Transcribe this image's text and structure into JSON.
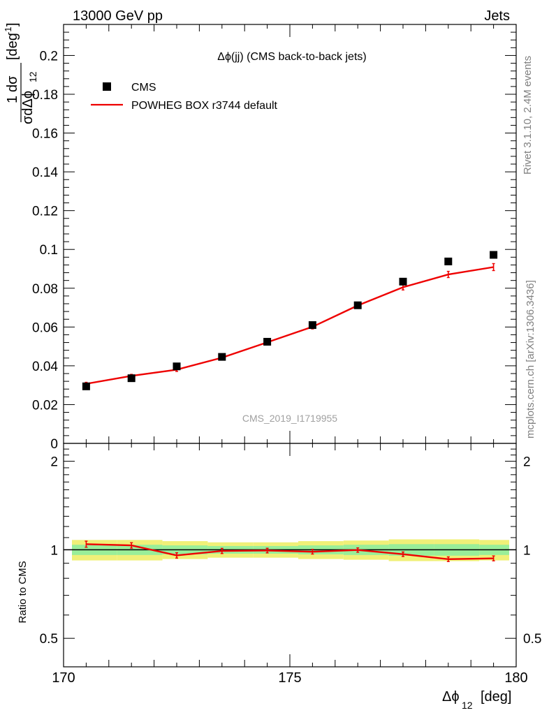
{
  "header": {
    "left": "13000 GeV pp",
    "right": "Jets"
  },
  "side_labels": {
    "rivet": "Rivet 3.1.10,  2.4M events",
    "mcplots": "mcplots.cern.ch [arXiv:1306.3436]"
  },
  "watermark": "CMS_2019_I1719955",
  "colors": {
    "data": "#000000",
    "mc": "#ee0000",
    "band_inner": "#99ee99",
    "band_outer": "#f0f078"
  },
  "chart_data": [
    {
      "type": "scatter",
      "title": "Δϕ(jj) (CMS back-to-back jets)",
      "ylabel_prefix": "1",
      "ylabel_numer": "dσ",
      "ylabel_denom": "σdΔϕ",
      "ylabel_denom_sub": "12",
      "ylabel_unit": "[deg",
      "ylabel_unit_sup": "-1",
      "ylabel_unit_end": "]",
      "xlim": [
        170,
        180
      ],
      "ylim": [
        0,
        0.216
      ],
      "yticks": [
        "0",
        "0.02",
        "0.04",
        "0.06",
        "0.08",
        "0.1",
        "0.12",
        "0.14",
        "0.16",
        "0.18",
        "0.2"
      ],
      "ytick_values": [
        0,
        0.02,
        0.04,
        0.06,
        0.08,
        0.1,
        0.12,
        0.14,
        0.16,
        0.18,
        0.2
      ],
      "legend_position": "top-left",
      "series": [
        {
          "name": "CMS",
          "style": "markers",
          "x": [
            170.5,
            171.5,
            172.5,
            173.5,
            174.5,
            175.5,
            176.5,
            177.5,
            178.5,
            179.5
          ],
          "y": [
            0.0294,
            0.0336,
            0.0397,
            0.0446,
            0.0524,
            0.061,
            0.0712,
            0.0834,
            0.0938,
            0.0972
          ]
        },
        {
          "name": "POWHEG BOX r3744 default",
          "style": "line",
          "x": [
            170.5,
            171.5,
            172.5,
            173.5,
            174.5,
            175.5,
            176.5,
            177.5,
            178.5,
            179.5
          ],
          "y": [
            0.0307,
            0.0348,
            0.038,
            0.0442,
            0.0521,
            0.0601,
            0.0711,
            0.0805,
            0.0871,
            0.0909
          ],
          "yerr": [
            0.0008,
            0.0008,
            0.0009,
            0.0009,
            0.001,
            0.0011,
            0.0012,
            0.0014,
            0.0016,
            0.0018
          ]
        }
      ]
    },
    {
      "type": "line",
      "ylabel": "Ratio to CMS",
      "xlabel_main": "Δϕ",
      "xlabel_sub": "12",
      "xlabel_unit": "[deg]",
      "xlim": [
        170,
        180
      ],
      "ylim": [
        0.4,
        2.3
      ],
      "log_y": true,
      "yticks": [
        "0.5",
        "1",
        "2"
      ],
      "ytick_values": [
        0.5,
        1,
        2
      ],
      "xticks": [
        "170",
        "175",
        "180"
      ],
      "xtick_values": [
        170,
        175,
        180
      ],
      "band_x_edges": [
        170,
        171,
        172,
        173,
        174,
        175,
        176,
        177,
        178,
        179,
        180
      ],
      "band_inner": [
        0.04,
        0.04,
        0.035,
        0.03,
        0.03,
        0.035,
        0.04,
        0.045,
        0.045,
        0.04
      ],
      "band_outer": [
        0.08,
        0.08,
        0.07,
        0.06,
        0.06,
        0.07,
        0.075,
        0.085,
        0.085,
        0.08
      ],
      "series": [
        {
          "name": "POWHEG BOX r3744 default",
          "x": [
            170.5,
            171.5,
            172.5,
            173.5,
            174.5,
            175.5,
            176.5,
            177.5,
            178.5,
            179.5
          ],
          "y": [
            1.045,
            1.035,
            0.957,
            0.991,
            0.994,
            0.985,
            0.998,
            0.966,
            0.929,
            0.935
          ],
          "yerr": [
            0.025,
            0.022,
            0.02,
            0.02,
            0.018,
            0.018,
            0.017,
            0.017,
            0.017,
            0.018
          ]
        }
      ]
    }
  ]
}
